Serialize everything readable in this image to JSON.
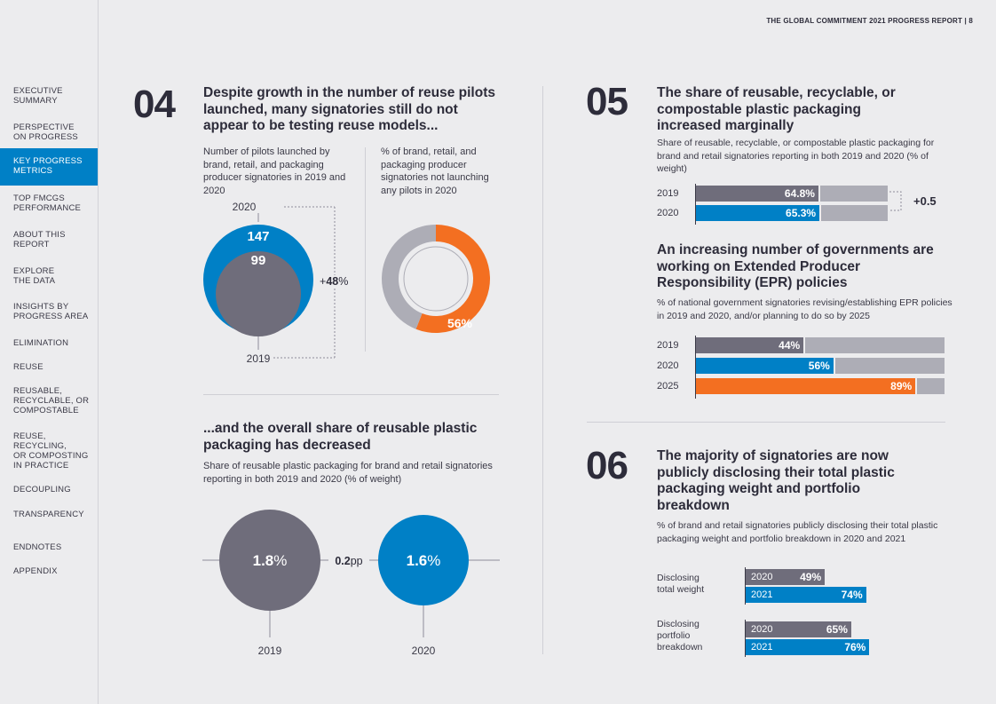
{
  "header": {
    "title": "THE GLOBAL COMMITMENT 2021 PROGRESS REPORT  |  8"
  },
  "sidebar": {
    "items": [
      {
        "label": "EXECUTIVE\nSUMMARY"
      },
      {
        "label": "PERSPECTIVE\nON PROGRESS"
      },
      {
        "label": "KEY PROGRESS\nMETRICS"
      },
      {
        "label": "TOP FMCGS\nPERFORMANCE"
      },
      {
        "label": "ABOUT THIS\nREPORT"
      },
      {
        "label": "EXPLORE\nTHE DATA"
      },
      {
        "label": "INSIGHTS BY\nPROGRESS AREA"
      },
      {
        "label": "ELIMINATION"
      },
      {
        "label": "REUSE"
      },
      {
        "label": "REUSABLE,\nRECYCLABLE, OR\nCOMPOSTABLE"
      },
      {
        "label": "REUSE,\nRECYCLING,\nOR COMPOSTING\nIN PRACTICE"
      },
      {
        "label": "DECOUPLING"
      },
      {
        "label": "TRANSPARENCY"
      },
      {
        "label": "ENDNOTES"
      },
      {
        "label": "APPENDIX"
      }
    ],
    "active_index": 2
  },
  "colors": {
    "grey": "#6f6d7b",
    "blue": "#0080c6",
    "orange": "#f36f21",
    "light": "#adadb6"
  },
  "s04": {
    "number": "04",
    "heading": "Despite growth in the number of reuse pilots launched, many signatories still do not appear to be testing reuse models...",
    "left_desc": "Number of pilots launched by brand, retail, and packaging producer signatories in 2019 and 2020",
    "right_desc": "% of brand, retail, and packaging producer signatories not launching any pilots in 2020",
    "label_2020": "2020",
    "label_2019": "2019",
    "value_2020": "147",
    "value_2019": "99",
    "growth_prefix": "+",
    "growth_num": "48",
    "growth_suffix": "%",
    "donut_label": "56%"
  },
  "s04b": {
    "heading": "...and the overall share of reusable plastic packaging has decreased",
    "desc": "Share of reusable plastic packaging for brand and retail signatories reporting in both 2019 and 2020 (% of weight)",
    "val_2019_num": "1.8",
    "val_2020_num": "1.6",
    "pct": "%",
    "diff_num": "0.2",
    "diff_unit": "pp",
    "year_2019": "2019",
    "year_2020": "2020"
  },
  "s05": {
    "number": "05",
    "heading": "The share of reusable, recyclable, or compostable plastic packaging increased marginally",
    "desc": "Share of reusable, recyclable, or compostable plastic packaging for brand and retail signatories reporting in both 2019 and 2020 (% of weight)",
    "change": "+0.5",
    "heading2": "An increasing number of governments are working on Extended Producer Responsibility (EPR) policies",
    "desc2": "% of national government signatories revising/establishing EPR policies in 2019 and 2020, and/or planning to do so by 2025"
  },
  "s06": {
    "number": "06",
    "heading": "The majority of signatories are now publicly disclosing their total plastic packaging weight and portfolio breakdown",
    "desc": "% of brand and retail signatories publicly disclosing their total plastic packaging weight and portfolio breakdown in 2020 and 2021",
    "group1_label": "Disclosing\ntotal weight",
    "group2_label": "Disclosing\nportfolio\nbreakdown"
  },
  "chart_data": [
    {
      "type": "bubble",
      "title": "Number of pilots launched by brand, retail, and packaging producer signatories in 2019 and 2020",
      "categories": [
        "2019",
        "2020"
      ],
      "values": [
        99,
        147
      ],
      "annotation": "+48%"
    },
    {
      "type": "pie",
      "title": "% of brand, retail, and packaging producer signatories not launching any pilots in 2020",
      "values": [
        56
      ],
      "labels": [
        "56%"
      ]
    },
    {
      "type": "bubble",
      "title": "Share of reusable plastic packaging for brand and retail signatories reporting in both 2019 and 2020 (% of weight)",
      "categories": [
        "2019",
        "2020"
      ],
      "values": [
        1.8,
        1.6
      ],
      "annotation": "0.2pp"
    },
    {
      "type": "bar",
      "title": "Share of reusable, recyclable, or compostable plastic packaging for brand and retail signatories reporting in both 2019 and 2020 (% of weight)",
      "categories": [
        "2019",
        "2020"
      ],
      "values": [
        64.8,
        65.3
      ],
      "labels": [
        "64.8%",
        "65.3%"
      ],
      "annotation": "+0.5"
    },
    {
      "type": "bar",
      "title": "% of national government signatories revising/establishing EPR policies in 2019 and 2020, and/or planning to do so by 2025",
      "categories": [
        "2019",
        "2020",
        "2025"
      ],
      "values": [
        44,
        56,
        89
      ],
      "labels": [
        "44%",
        "56%",
        "89%"
      ]
    },
    {
      "type": "bar",
      "title": "% of brand and retail signatories publicly disclosing their total plastic packaging weight and portfolio breakdown in 2020 and 2021",
      "groups": [
        "Disclosing total weight",
        "Disclosing portfolio breakdown"
      ],
      "series": [
        {
          "name": "2020",
          "values": [
            49,
            65
          ]
        },
        {
          "name": "2021",
          "values": [
            74,
            76
          ]
        }
      ],
      "labels": [
        [
          "49%",
          "74%"
        ],
        [
          "65%",
          "76%"
        ]
      ]
    }
  ]
}
